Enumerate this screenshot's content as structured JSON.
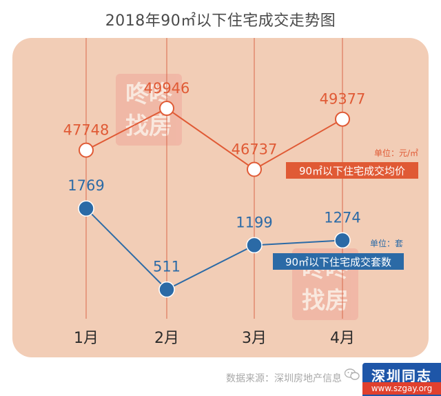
{
  "title": "2018年90㎡以下住宅成交走势图",
  "chart_data": {
    "type": "line",
    "categories": [
      "1月",
      "2月",
      "3月",
      "4月"
    ],
    "series": [
      {
        "name": "90㎡以下住宅成交均价",
        "unit": "单位：元/㎡",
        "values": [
          47748,
          49946,
          46737,
          49377
        ],
        "color": "#e05a35"
      },
      {
        "name": "90㎡以下住宅成交套数",
        "unit": "单位：套",
        "values": [
          1769,
          511,
          1199,
          1274
        ],
        "color": "#2b6aa6"
      }
    ]
  },
  "watermark": "咚咚找房",
  "source": "数据来源：深圳房地产信息",
  "brand": {
    "name": "深圳同志",
    "url": "www.szgay.org"
  },
  "colors": {
    "panel_bg": "#f2cdb6",
    "gridline": "#d9684a",
    "price_line": "#e05a35",
    "count_line": "#2b6aa6"
  }
}
